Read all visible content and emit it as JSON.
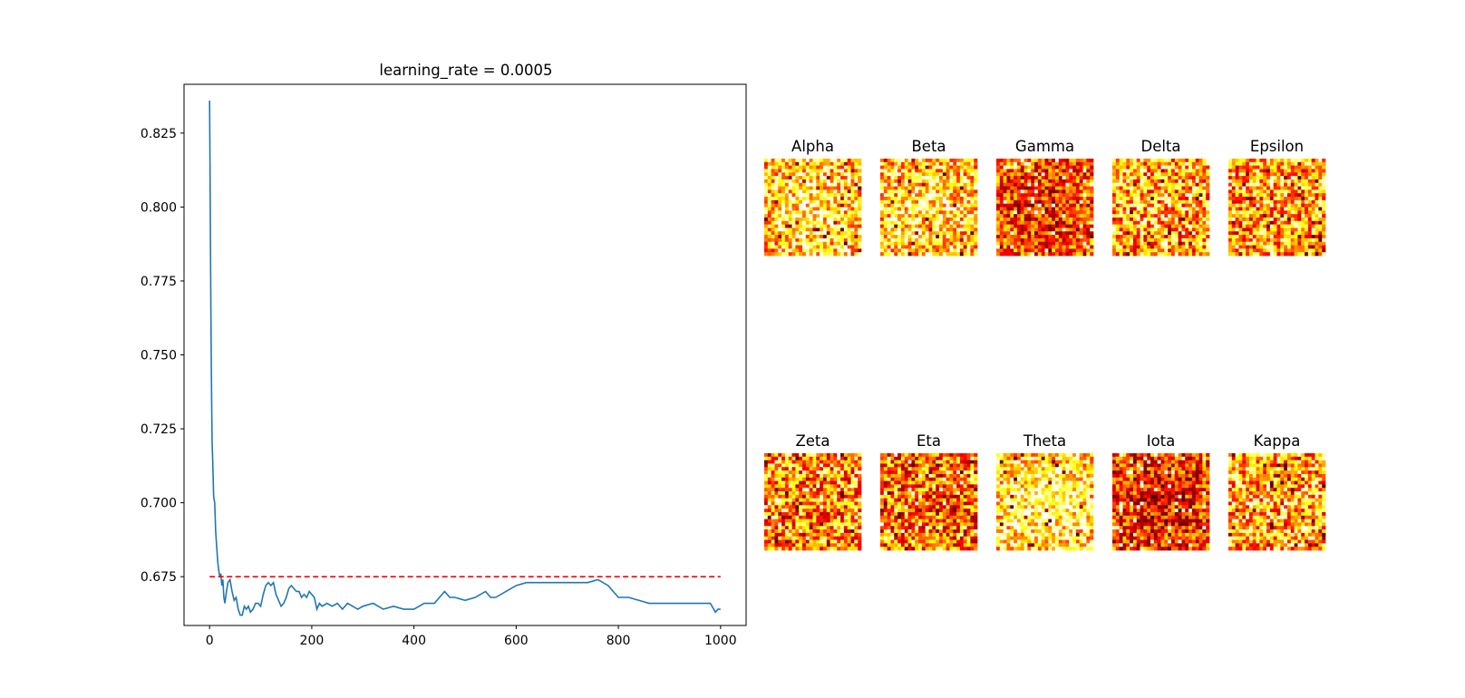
{
  "chart_data": [
    {
      "type": "line",
      "title": "learning_rate = 0.0005",
      "xlabel": "",
      "ylabel": "",
      "xlim": [
        -50,
        1050
      ],
      "ylim": [
        0.6585,
        0.8415
      ],
      "xticks": [
        0,
        200,
        400,
        600,
        800,
        1000
      ],
      "yticks": [
        0.675,
        0.7,
        0.725,
        0.75,
        0.775,
        0.8,
        0.825
      ],
      "xtick_labels": [
        "0",
        "200",
        "400",
        "600",
        "800",
        "1000"
      ],
      "ytick_labels": [
        "0.675",
        "0.700",
        "0.725",
        "0.750",
        "0.775",
        "0.800",
        "0.825"
      ],
      "grid": false,
      "series": [
        {
          "color": "#1f77b4",
          "style": "solid",
          "x": [
            0,
            1,
            2,
            3,
            4,
            5,
            6,
            8,
            10,
            12,
            14,
            16,
            18,
            20,
            22,
            24,
            26,
            28,
            30,
            33,
            36,
            40,
            44,
            48,
            52,
            56,
            60,
            64,
            68,
            72,
            76,
            80,
            85,
            90,
            95,
            100,
            105,
            110,
            115,
            120,
            125,
            130,
            135,
            140,
            145,
            150,
            155,
            160,
            165,
            170,
            175,
            180,
            185,
            190,
            195,
            200,
            205,
            210,
            215,
            220,
            230,
            240,
            250,
            260,
            270,
            280,
            290,
            300,
            320,
            340,
            360,
            380,
            400,
            420,
            440,
            450,
            460,
            470,
            480,
            500,
            520,
            540,
            550,
            560,
            580,
            600,
            620,
            640,
            660,
            680,
            700,
            720,
            740,
            760,
            780,
            800,
            820,
            840,
            860,
            880,
            900,
            920,
            940,
            960,
            980,
            990,
            995,
            1000
          ],
          "y": [
            0.836,
            0.81,
            0.78,
            0.755,
            0.735,
            0.72,
            0.715,
            0.702,
            0.7,
            0.69,
            0.685,
            0.68,
            0.677,
            0.675,
            0.676,
            0.672,
            0.674,
            0.668,
            0.666,
            0.67,
            0.673,
            0.674,
            0.67,
            0.667,
            0.668,
            0.664,
            0.662,
            0.662,
            0.665,
            0.664,
            0.665,
            0.663,
            0.664,
            0.666,
            0.666,
            0.665,
            0.669,
            0.672,
            0.673,
            0.672,
            0.673,
            0.669,
            0.667,
            0.665,
            0.666,
            0.668,
            0.671,
            0.672,
            0.671,
            0.67,
            0.67,
            0.668,
            0.669,
            0.668,
            0.67,
            0.669,
            0.668,
            0.664,
            0.666,
            0.665,
            0.666,
            0.665,
            0.666,
            0.664,
            0.666,
            0.665,
            0.664,
            0.665,
            0.666,
            0.664,
            0.665,
            0.664,
            0.664,
            0.666,
            0.666,
            0.668,
            0.67,
            0.668,
            0.668,
            0.667,
            0.668,
            0.67,
            0.668,
            0.668,
            0.67,
            0.672,
            0.673,
            0.673,
            0.673,
            0.673,
            0.673,
            0.673,
            0.673,
            0.674,
            0.672,
            0.668,
            0.668,
            0.667,
            0.666,
            0.666,
            0.666,
            0.666,
            0.666,
            0.666,
            0.666,
            0.663,
            0.664,
            0.664
          ]
        },
        {
          "color": "#ff0000",
          "style": "dashed",
          "x": [
            0,
            1000
          ],
          "y": [
            0.675,
            0.675
          ]
        }
      ]
    },
    {
      "type": "heatmap",
      "colormap": "hot",
      "grid_size": 28,
      "panels": [
        {
          "title": "Alpha"
        },
        {
          "title": "Beta"
        },
        {
          "title": "Gamma"
        },
        {
          "title": "Delta"
        },
        {
          "title": "Epsilon"
        },
        {
          "title": "Zeta"
        },
        {
          "title": "Eta"
        },
        {
          "title": "Theta"
        },
        {
          "title": "Iota"
        },
        {
          "title": "Kappa"
        }
      ]
    }
  ]
}
